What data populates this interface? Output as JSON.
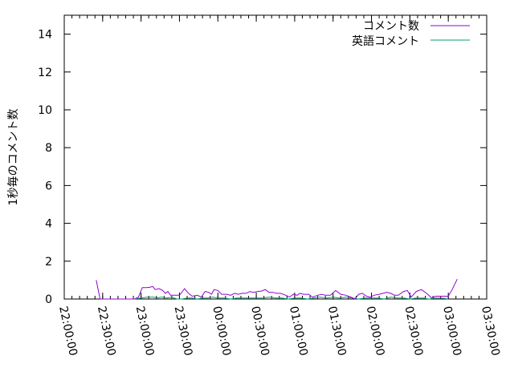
{
  "chart_data": {
    "type": "line",
    "title": "",
    "xlabel": "",
    "ylabel": "1秒毎のコメント数",
    "xlim": [
      "22:00:00",
      "03:30:00"
    ],
    "ylim": [
      0,
      15
    ],
    "x_ticks": [
      "22:00:00",
      "22:30:00",
      "23:00:00",
      "23:30:00",
      "00:00:00",
      "00:30:00",
      "01:00:00",
      "01:30:00",
      "02:00:00",
      "02:30:00",
      "03:00:00",
      "03:30:00"
    ],
    "y_ticks": [
      "0",
      "2",
      "4",
      "6",
      "8",
      "10",
      "12",
      "14"
    ],
    "grid": false,
    "legend_position": "top-right",
    "series": [
      {
        "name": "コメント数",
        "color": "#9400d3",
        "points": [
          [
            "22:25",
            1.0
          ],
          [
            "22:28",
            0
          ],
          [
            "22:55",
            0
          ],
          [
            "22:58",
            0.1
          ],
          [
            "23:01",
            0.6
          ],
          [
            "23:04",
            0.6
          ],
          [
            "23:07",
            0.62
          ],
          [
            "23:09",
            0.67
          ],
          [
            "23:11",
            0.5
          ],
          [
            "23:14",
            0.55
          ],
          [
            "23:17",
            0.45
          ],
          [
            "23:19",
            0.3
          ],
          [
            "23:21",
            0.4
          ],
          [
            "23:23",
            0.2
          ],
          [
            "23:27",
            0.2
          ],
          [
            "23:30",
            0.2
          ],
          [
            "23:34",
            0.55
          ],
          [
            "23:37",
            0.3
          ],
          [
            "23:40",
            0.15
          ],
          [
            "23:44",
            0.2
          ],
          [
            "23:47",
            0.1
          ],
          [
            "23:50",
            0.4
          ],
          [
            "23:53",
            0.35
          ],
          [
            "23:55",
            0.25
          ],
          [
            "23:57",
            0.5
          ],
          [
            "00:00",
            0.45
          ],
          [
            "00:03",
            0.25
          ],
          [
            "00:07",
            0.25
          ],
          [
            "00:10",
            0.2
          ],
          [
            "00:13",
            0.3
          ],
          [
            "00:16",
            0.25
          ],
          [
            "00:19",
            0.3
          ],
          [
            "00:22",
            0.3
          ],
          [
            "00:25",
            0.4
          ],
          [
            "00:28",
            0.35
          ],
          [
            "00:31",
            0.4
          ],
          [
            "00:34",
            0.42
          ],
          [
            "00:37",
            0.5
          ],
          [
            "00:40",
            0.35
          ],
          [
            "00:43",
            0.35
          ],
          [
            "00:46",
            0.3
          ],
          [
            "00:49",
            0.3
          ],
          [
            "00:53",
            0.2
          ],
          [
            "00:56",
            0.1
          ],
          [
            "00:59",
            0.25
          ],
          [
            "01:02",
            0.2
          ],
          [
            "01:04",
            0.3
          ],
          [
            "01:07",
            0.25
          ],
          [
            "01:11",
            0.25
          ],
          [
            "01:14",
            0.1
          ],
          [
            "01:18",
            0.2
          ],
          [
            "01:21",
            0.25
          ],
          [
            "01:24",
            0.2
          ],
          [
            "01:28",
            0.2
          ],
          [
            "01:32",
            0.45
          ],
          [
            "01:36",
            0.25
          ],
          [
            "01:40",
            0.2
          ],
          [
            "01:44",
            0.1
          ],
          [
            "01:47",
            0.0
          ],
          [
            "01:50",
            0.25
          ],
          [
            "01:53",
            0.3
          ],
          [
            "01:56",
            0.15
          ],
          [
            "01:59",
            0.1
          ],
          [
            "02:02",
            0.2
          ],
          [
            "02:06",
            0.25
          ],
          [
            "02:09",
            0.3
          ],
          [
            "02:12",
            0.35
          ],
          [
            "02:15",
            0.3
          ],
          [
            "02:18",
            0.2
          ],
          [
            "02:21",
            0.2
          ],
          [
            "02:25",
            0.4
          ],
          [
            "02:28",
            0.45
          ],
          [
            "02:31",
            0.1
          ],
          [
            "02:35",
            0.4
          ],
          [
            "02:39",
            0.5
          ],
          [
            "02:43",
            0.3
          ],
          [
            "02:47",
            0.05
          ],
          [
            "02:50",
            0.15
          ],
          [
            "02:55",
            0.15
          ],
          [
            "03:00",
            0.15
          ],
          [
            "03:03",
            0.5
          ],
          [
            "03:07",
            1.05
          ]
        ]
      },
      {
        "name": "英語コメント",
        "color": "#009e73",
        "points": [
          [
            "22:55",
            0
          ],
          [
            "23:00",
            0.05
          ],
          [
            "23:05",
            0.1
          ],
          [
            "23:10",
            0.1
          ],
          [
            "23:12",
            0.05
          ],
          [
            "23:16",
            0.1
          ],
          [
            "23:20",
            0.05
          ],
          [
            "23:24",
            0.1
          ],
          [
            "23:28",
            0
          ],
          [
            "23:32",
            0
          ],
          [
            "23:36",
            0.05
          ],
          [
            "23:40",
            0.05
          ],
          [
            "23:44",
            0
          ],
          [
            "23:48",
            0.05
          ],
          [
            "23:52",
            0.05
          ],
          [
            "23:56",
            0.1
          ],
          [
            "24:00",
            0.05
          ],
          [
            "00:05",
            0.05
          ],
          [
            "00:10",
            0
          ],
          [
            "00:15",
            0.05
          ],
          [
            "00:20",
            0.05
          ],
          [
            "00:25",
            0.05
          ],
          [
            "00:30",
            0.05
          ],
          [
            "00:35",
            0.05
          ],
          [
            "00:40",
            0.1
          ],
          [
            "00:45",
            0.05
          ],
          [
            "00:50",
            0.05
          ],
          [
            "00:55",
            0
          ],
          [
            "01:00",
            0.05
          ],
          [
            "01:05",
            0.05
          ],
          [
            "01:10",
            0
          ],
          [
            "01:15",
            0.05
          ],
          [
            "01:20",
            0.1
          ],
          [
            "01:25",
            0.05
          ],
          [
            "01:30",
            0.1
          ],
          [
            "01:35",
            0.05
          ],
          [
            "01:40",
            0.1
          ],
          [
            "01:45",
            0.05
          ],
          [
            "01:50",
            0
          ],
          [
            "01:55",
            0.05
          ],
          [
            "02:00",
            0.05
          ],
          [
            "02:05",
            0.05
          ],
          [
            "02:10",
            0
          ],
          [
            "02:15",
            0.1
          ],
          [
            "02:20",
            0.05
          ],
          [
            "02:25",
            0.05
          ],
          [
            "02:30",
            0
          ],
          [
            "02:35",
            0.05
          ],
          [
            "02:40",
            0.05
          ],
          [
            "02:45",
            0
          ],
          [
            "02:50",
            0.05
          ],
          [
            "02:55",
            0.05
          ],
          [
            "03:00",
            0
          ]
        ]
      }
    ]
  }
}
